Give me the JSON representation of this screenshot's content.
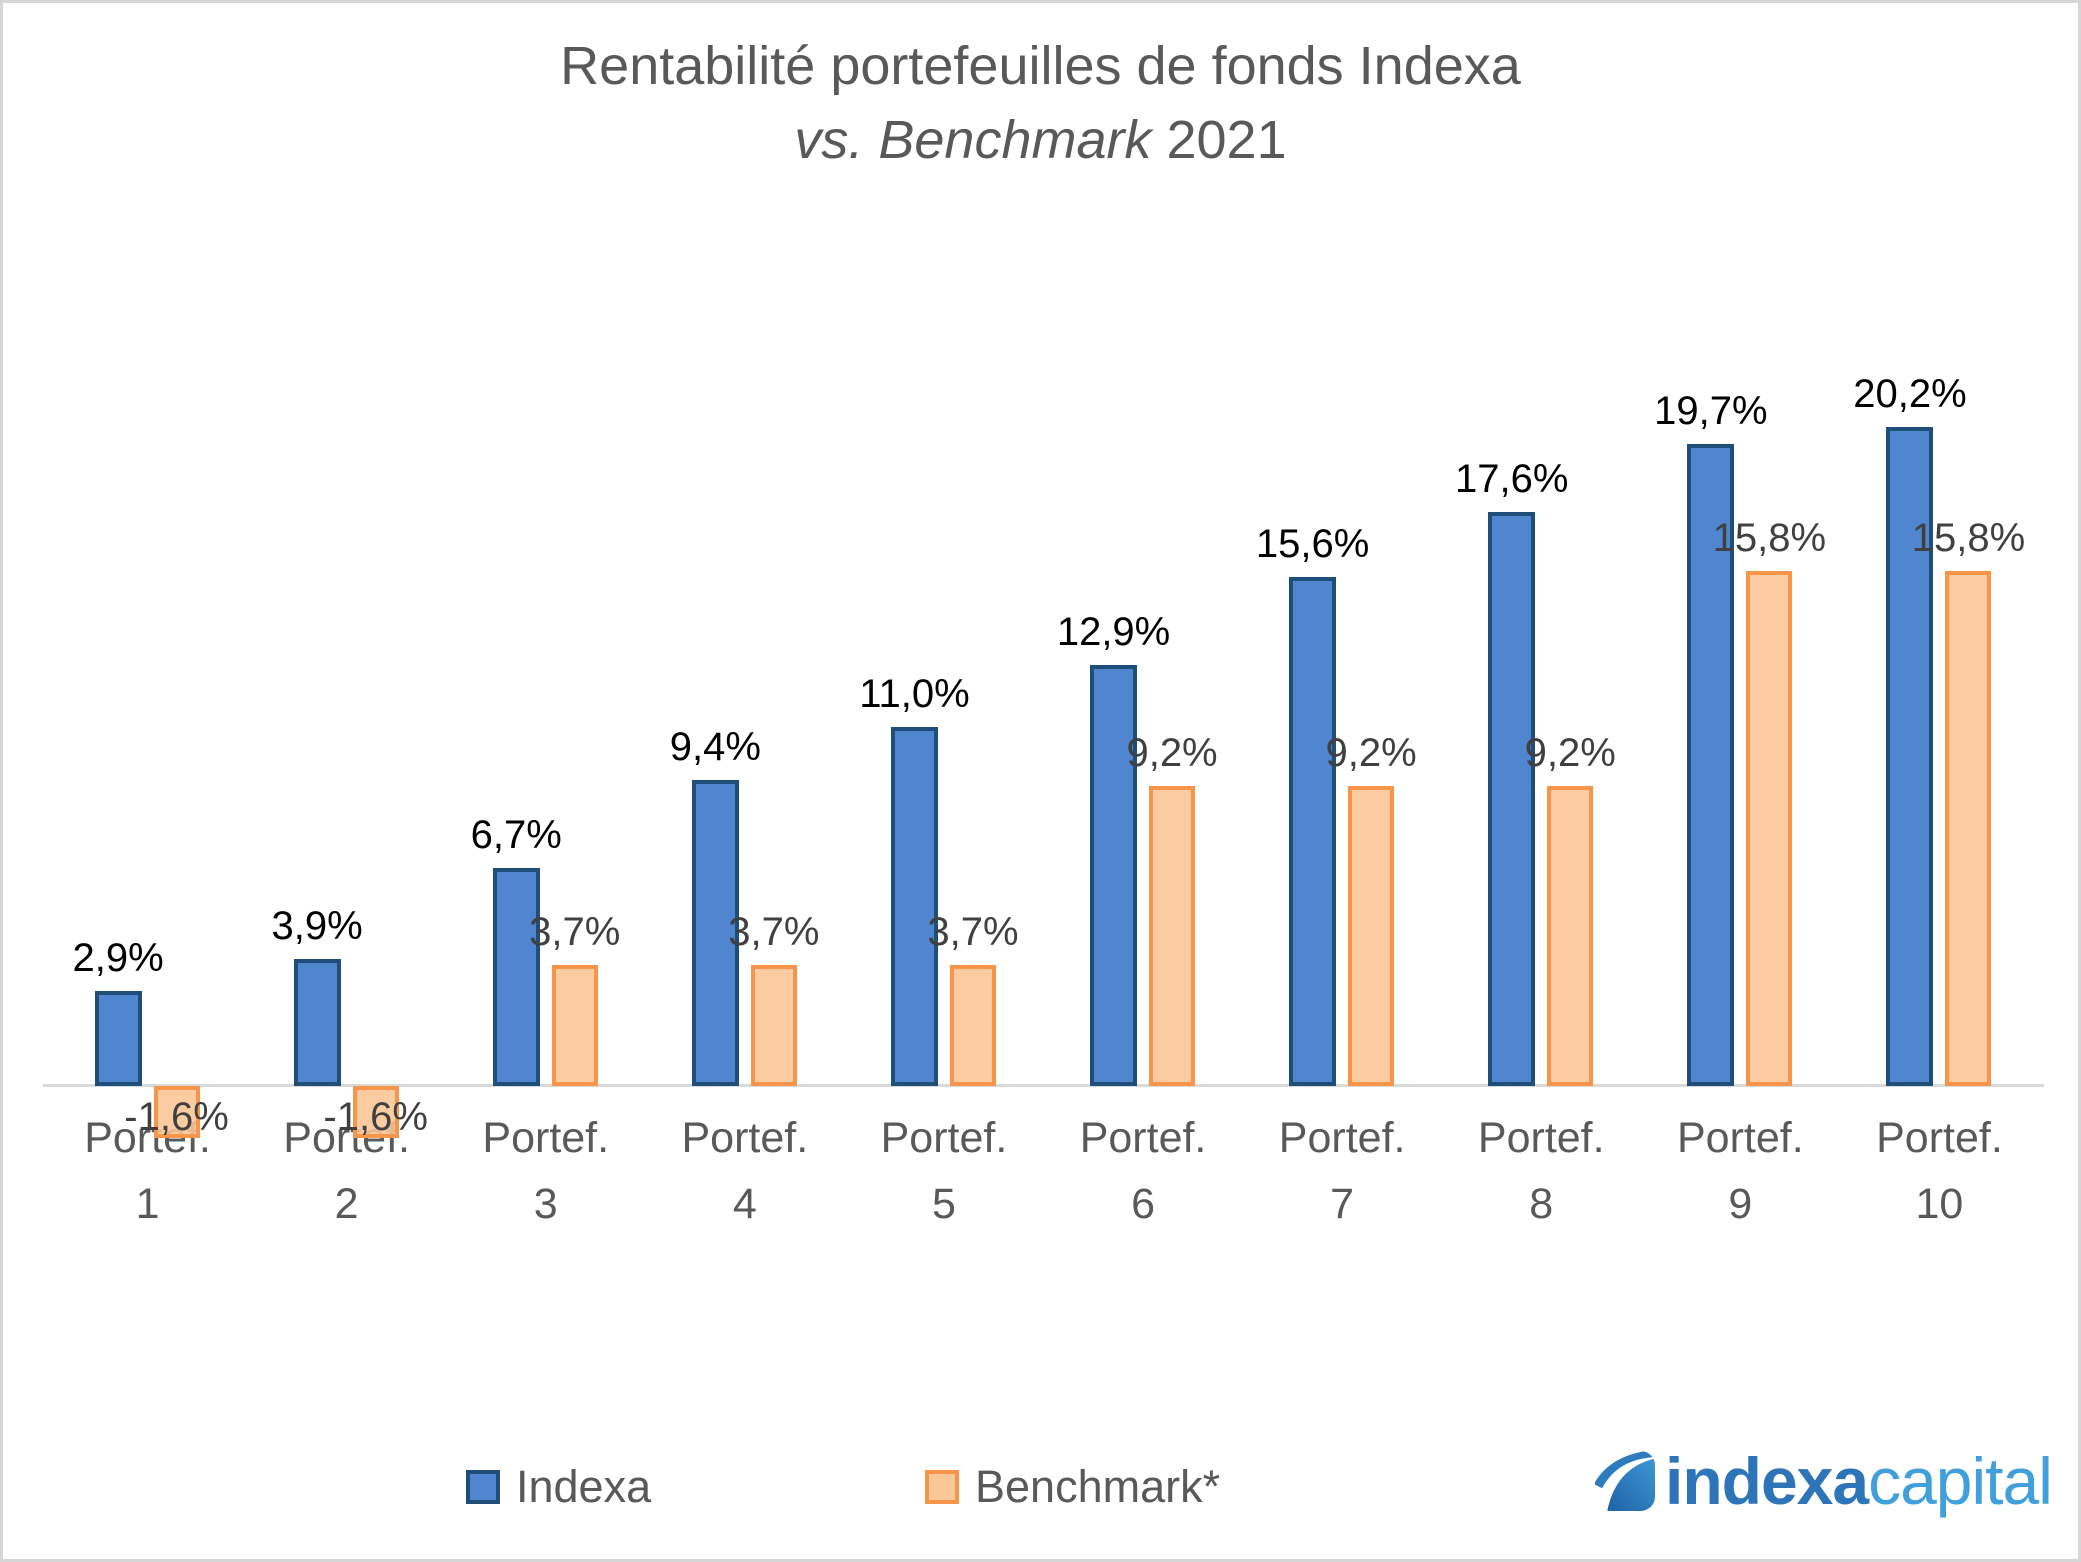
{
  "page": {
    "background": "#ffffff",
    "frame_border_color": "#d6d6d6"
  },
  "title": {
    "line1": "Rentabilité portefeuilles de fonds Indexa",
    "line2_italic": "vs. Benchmark",
    "line2_suffix": " 2021",
    "color": "#595959"
  },
  "chart_data": {
    "type": "bar",
    "categories": [
      {
        "line1": "Portef.",
        "line2": "1"
      },
      {
        "line1": "Portef.",
        "line2": "2"
      },
      {
        "line1": "Portef.",
        "line2": "3"
      },
      {
        "line1": "Portef.",
        "line2": "4"
      },
      {
        "line1": "Portef.",
        "line2": "5"
      },
      {
        "line1": "Portef.",
        "line2": "6"
      },
      {
        "line1": "Portef.",
        "line2": "7"
      },
      {
        "line1": "Portef.",
        "line2": "8"
      },
      {
        "line1": "Portef.",
        "line2": "9"
      },
      {
        "line1": "Portef.",
        "line2": "10"
      }
    ],
    "series": [
      {
        "name": "Indexa",
        "values": [
          2.9,
          3.9,
          6.7,
          9.4,
          11.0,
          12.9,
          15.6,
          17.6,
          19.7,
          20.2
        ],
        "labels": [
          "2,9%",
          "3,9%",
          "6,7%",
          "9,4%",
          "11,0%",
          "12,9%",
          "15,6%",
          "17,6%",
          "19,7%",
          "20,2%"
        ],
        "fill": "#4F86CF",
        "border": "#1F4E79",
        "label_color": "#000000"
      },
      {
        "name": "Benchmark*",
        "values": [
          -1.6,
          -1.6,
          3.7,
          3.7,
          3.7,
          9.2,
          9.2,
          9.2,
          15.8,
          15.8
        ],
        "labels": [
          "-1,6%",
          "-1,6%",
          "3,7%",
          "3,7%",
          "3,7%",
          "9,2%",
          "9,2%",
          "9,2%",
          "15,8%",
          "15,8%"
        ],
        "fill": "rgba(250,196,148,0.88)",
        "border": "#F7964A",
        "label_color": "#404040"
      }
    ],
    "ylim": [
      -3,
      22
    ],
    "grid": false,
    "xlabel": "",
    "ylabel": "",
    "axis_line_color": "#d9d9d9",
    "category_label_color": "#595959",
    "legend_position": "bottom"
  },
  "legend": {
    "items": [
      {
        "label": "Indexa",
        "fill": "#4F86CF",
        "border": "#1F4E79"
      },
      {
        "label": "Benchmark*",
        "fill": "rgba(250,196,148,0.95)",
        "border": "#F7964A"
      }
    ]
  },
  "logo": {
    "text_bold": "indexa",
    "text_light": "capital",
    "color_bold": "#2E74B8",
    "color_light": "#41A0DC"
  }
}
